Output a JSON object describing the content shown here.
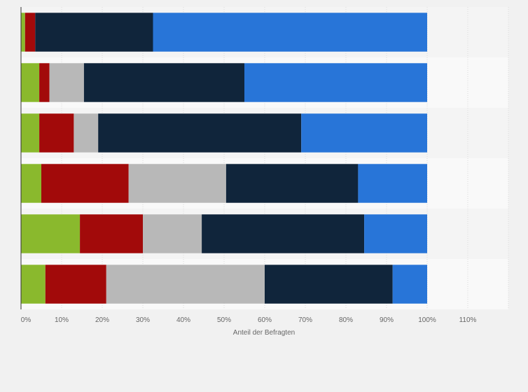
{
  "chart_data": {
    "type": "bar",
    "orientation": "horizontal",
    "stacked": true,
    "xlabel": "Anteil der Befragten",
    "ylabel": "",
    "xlim": [
      0,
      120
    ],
    "xticks": [
      "0%",
      "10%",
      "20%",
      "30%",
      "40%",
      "50%",
      "60%",
      "70%",
      "80%",
      "90%",
      "100%",
      "110%"
    ],
    "tick_values": [
      0,
      10,
      20,
      30,
      40,
      50,
      60,
      70,
      80,
      90,
      100,
      110
    ],
    "grid": true,
    "legend": "none",
    "categories": [
      "",
      "",
      "",
      "",
      "",
      ""
    ],
    "series": [
      {
        "color": "#8ab92d",
        "values": [
          1,
          4.5,
          4.5,
          5,
          14.5,
          6
        ]
      },
      {
        "color": "#a20a0a",
        "values": [
          2.5,
          2.5,
          8.5,
          21.5,
          15.5,
          15
        ]
      },
      {
        "color": "#b8b8b8",
        "values": [
          0,
          8.5,
          6,
          24,
          14.5,
          39
        ]
      },
      {
        "color": "#10253b",
        "values": [
          29,
          39.5,
          50,
          32.5,
          40,
          31.5
        ]
      },
      {
        "color": "#2875d8",
        "values": [
          67.5,
          45,
          31,
          17,
          15.5,
          8.5
        ]
      }
    ]
  }
}
